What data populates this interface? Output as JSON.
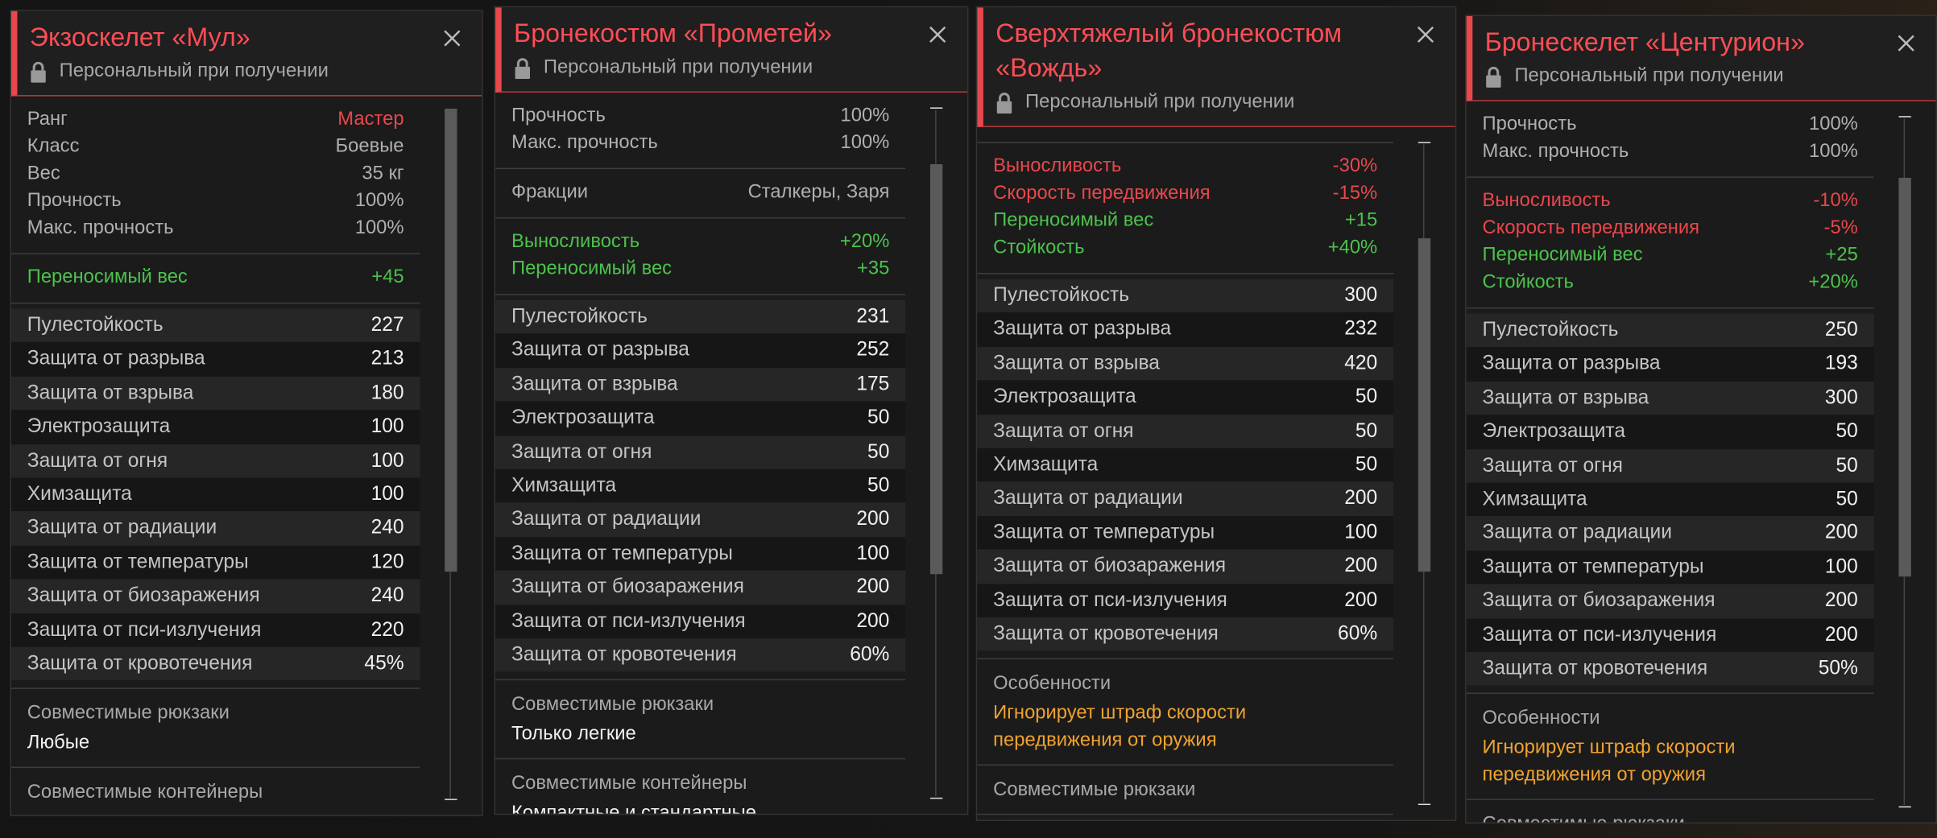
{
  "cards": [
    {
      "title": "Экзоскелет «Мул»",
      "subtitle": "Персональный при получении",
      "sections": [
        {
          "type": "pairs",
          "rows": [
            {
              "label": "Ранг",
              "value": "Мастер",
              "color": "#e8474c"
            },
            {
              "label": "Класс",
              "value": "Боевые"
            },
            {
              "label": "Вес",
              "value": "35 кг"
            },
            {
              "label": "Прочность",
              "value": "100%"
            },
            {
              "label": "Макс. прочность",
              "value": "100%"
            }
          ]
        },
        {
          "type": "pairs",
          "rows": [
            {
              "label": "Переносимый вес",
              "value": "+45",
              "color": "#4cc24c"
            }
          ]
        },
        {
          "type": "stats",
          "rows": [
            {
              "label": "Пулестойкость",
              "value": "227"
            },
            {
              "label": "Защита от разрыва",
              "value": "213"
            },
            {
              "label": "Защита от взрыва",
              "value": "180"
            },
            {
              "label": "Электрозащита",
              "value": "100"
            },
            {
              "label": "Защита от огня",
              "value": "100"
            },
            {
              "label": "Химзащита",
              "value": "100"
            },
            {
              "label": "Защита от радиации",
              "value": "240"
            },
            {
              "label": "Защита от температуры",
              "value": "120"
            },
            {
              "label": "Защита от биозаражения",
              "value": "240"
            },
            {
              "label": "Защита от пси-излучения",
              "value": "220"
            },
            {
              "label": "Защита от кровотечения",
              "value": "45%"
            }
          ]
        },
        {
          "type": "text",
          "heading": "Совместимые рюкзаки",
          "text": "Любые"
        },
        {
          "type": "text",
          "heading": "Совместимые контейнеры"
        }
      ]
    },
    {
      "title": "Бронекостюм «Прометей»",
      "subtitle": "Персональный при получении",
      "sections": [
        {
          "type": "pairs",
          "rows": [
            {
              "label": "Прочность",
              "value": "100%"
            },
            {
              "label": "Макс. прочность",
              "value": "100%"
            }
          ]
        },
        {
          "type": "pairs",
          "rows": [
            {
              "label": "Фракции",
              "value": "Сталкеры, Заря"
            }
          ]
        },
        {
          "type": "pairs",
          "rows": [
            {
              "label": "Выносливость",
              "value": "+20%",
              "color": "#4cc24c"
            },
            {
              "label": "Переносимый вес",
              "value": "+35",
              "color": "#4cc24c"
            }
          ]
        },
        {
          "type": "stats",
          "rows": [
            {
              "label": "Пулестойкость",
              "value": "231"
            },
            {
              "label": "Защита от разрыва",
              "value": "252"
            },
            {
              "label": "Защита от взрыва",
              "value": "175"
            },
            {
              "label": "Электрозащита",
              "value": "50"
            },
            {
              "label": "Защита от огня",
              "value": "50"
            },
            {
              "label": "Химзащита",
              "value": "50"
            },
            {
              "label": "Защита от радиации",
              "value": "200"
            },
            {
              "label": "Защита от температуры",
              "value": "100"
            },
            {
              "label": "Защита от биозаражения",
              "value": "200"
            },
            {
              "label": "Защита от пси-излучения",
              "value": "200"
            },
            {
              "label": "Защита от кровотечения",
              "value": "60%"
            }
          ]
        },
        {
          "type": "text",
          "heading": "Совместимые рюкзаки",
          "text": "Только легкие"
        },
        {
          "type": "text",
          "heading": "Совместимые контейнеры",
          "text": "Компактные и стандартные"
        }
      ]
    },
    {
      "title": "Сверхтяжелый бронекостюм «Вождь»",
      "subtitle": "Персональный при получении",
      "sections": [
        {
          "type": "pairs",
          "rows": [
            {
              "label": "Выносливость",
              "value": "-30%",
              "color": "#e8474c"
            },
            {
              "label": "Скорость передвижения",
              "value": "-15%",
              "color": "#e8474c"
            },
            {
              "label": "Переносимый вес",
              "value": "+15",
              "color": "#4cc24c"
            },
            {
              "label": "Стойкость",
              "value": "+40%",
              "color": "#4cc24c"
            }
          ]
        },
        {
          "type": "stats",
          "rows": [
            {
              "label": "Пулестойкость",
              "value": "300"
            },
            {
              "label": "Защита от разрыва",
              "value": "232"
            },
            {
              "label": "Защита от взрыва",
              "value": "420"
            },
            {
              "label": "Электрозащита",
              "value": "50"
            },
            {
              "label": "Защита от огня",
              "value": "50"
            },
            {
              "label": "Химзащита",
              "value": "50"
            },
            {
              "label": "Защита от радиации",
              "value": "200"
            },
            {
              "label": "Защита от температуры",
              "value": "100"
            },
            {
              "label": "Защита от биозаражения",
              "value": "200"
            },
            {
              "label": "Защита от пси-излучения",
              "value": "200"
            },
            {
              "label": "Защита от кровотечения",
              "value": "60%"
            }
          ]
        },
        {
          "type": "text",
          "heading": "Особенности",
          "text": "Игнорирует штраф скорости передвижения от оружия",
          "color": "#f0a22e"
        },
        {
          "type": "text",
          "heading": "Совместимые рюкзаки"
        }
      ]
    },
    {
      "title": "Бронескелет «Центурион»",
      "subtitle": "Персональный при получении",
      "sections": [
        {
          "type": "pairs",
          "rows": [
            {
              "label": "Прочность",
              "value": "100%"
            },
            {
              "label": "Макс. прочность",
              "value": "100%"
            }
          ]
        },
        {
          "type": "pairs",
          "rows": [
            {
              "label": "Выносливость",
              "value": "-10%",
              "color": "#e8474c"
            },
            {
              "label": "Скорость передвижения",
              "value": "-5%",
              "color": "#e8474c"
            },
            {
              "label": "Переносимый вес",
              "value": "+25",
              "color": "#4cc24c"
            },
            {
              "label": "Стойкость",
              "value": "+20%",
              "color": "#4cc24c"
            }
          ]
        },
        {
          "type": "stats",
          "rows": [
            {
              "label": "Пулестойкость",
              "value": "250"
            },
            {
              "label": "Защита от разрыва",
              "value": "193"
            },
            {
              "label": "Защита от взрыва",
              "value": "300"
            },
            {
              "label": "Электрозащита",
              "value": "50"
            },
            {
              "label": "Защита от огня",
              "value": "50"
            },
            {
              "label": "Химзащита",
              "value": "50"
            },
            {
              "label": "Защита от радиации",
              "value": "200"
            },
            {
              "label": "Защита от температуры",
              "value": "100"
            },
            {
              "label": "Защита от биозаражения",
              "value": "200"
            },
            {
              "label": "Защита от пси-излучения",
              "value": "200"
            },
            {
              "label": "Защита от кровотечения",
              "value": "50%"
            }
          ]
        },
        {
          "type": "text",
          "heading": "Особенности",
          "text": "Игнорирует штраф скорости передвижения от оружия",
          "color": "#f0a22e"
        },
        {
          "type": "text",
          "heading": "Совместимые рюкзаки"
        }
      ]
    }
  ]
}
